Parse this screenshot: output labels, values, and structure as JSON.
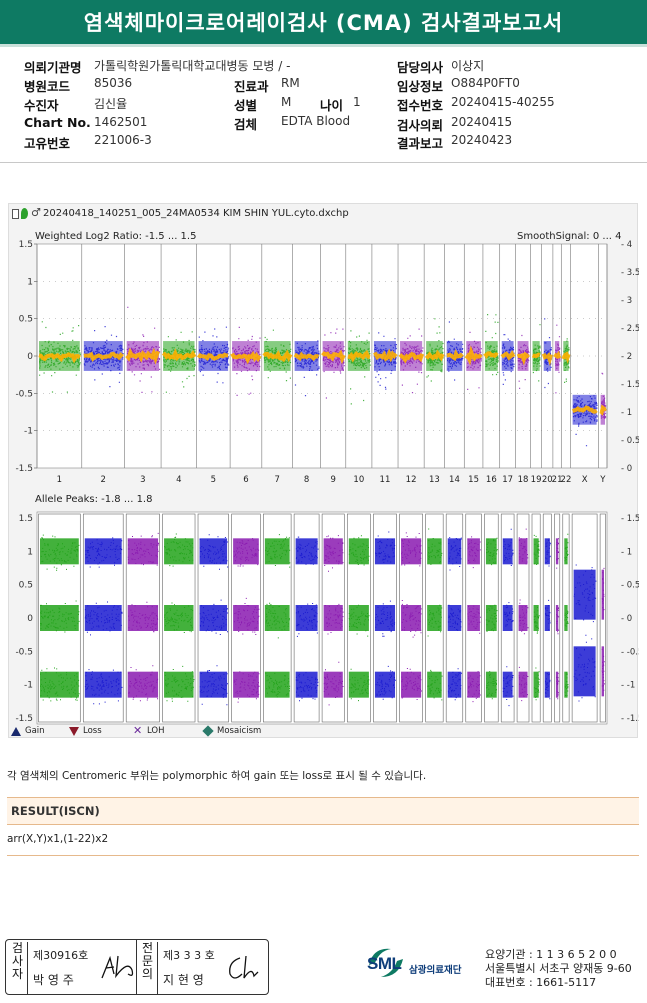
{
  "title": "염색체마이크로어레이검사 (CMA) 검사결과보고서",
  "patient": {
    "institution_label": "의뢰기관명",
    "institution": "가톨릭학원가톨릭대학교대병동 모병 / -",
    "hospital_code_label": "병원코드",
    "hospital_code": "85036",
    "department_label": "진료과",
    "department": "RM",
    "examinee_label": "수진자",
    "examinee": "김신율",
    "sex_label": "성별",
    "sex": "M",
    "age_label": "나이",
    "age": "1",
    "chart_label": "Chart No.",
    "chart": "1462501",
    "specimen_label": "검체",
    "specimen": "EDTA Blood",
    "unique_label": "고유번호",
    "unique": "221006-3",
    "doctor_label": "담당의사",
    "doctor": "이상지",
    "clinical_label": "임상정보",
    "clinical": "O884P0FT0",
    "receipt_label": "접수번호",
    "receipt": "20240415-40255",
    "request_label": "검사의뢰",
    "request": "20240415",
    "report_label": "결과보고",
    "report": "20240423"
  },
  "figure": {
    "file_name": "20240418_140251_005_24MA0534 KIM SHIN YUL.cyto.dxchp",
    "top_label_left": "Weighted Log2 Ratio: -1.5 ... 1.5",
    "top_label_right": "SmoothSignal: 0 ... 4",
    "bottom_label": "Allele Peaks: -1.8 ... 1.8",
    "chromosomes": [
      "1",
      "2",
      "3",
      "4",
      "5",
      "6",
      "7",
      "8",
      "9",
      "10",
      "11",
      "12",
      "13",
      "14",
      "15",
      "16",
      "17",
      "18",
      "19",
      "20",
      "21",
      "22",
      "X",
      "Y"
    ],
    "ratio_ticks_left": [
      "1.5",
      "1",
      "0.5",
      "0",
      "-0.5",
      "-1",
      "-1.5"
    ],
    "ratio_ticks_right": [
      "4",
      "3.5",
      "3",
      "2.5",
      "2",
      "1.5",
      "1",
      "0.5",
      "0"
    ],
    "allele_ticks": [
      "1.5",
      "1",
      "0.5",
      "0",
      "-0.5",
      "-1",
      "-1.5"
    ],
    "legend": [
      {
        "label": "Gain",
        "color": "#1a2a6e"
      },
      {
        "label": "Loss",
        "color": "#8b1a2a"
      },
      {
        "label": "LOH",
        "color": "#6a2a9a"
      },
      {
        "label": "Mosaicism",
        "color": "#2a7a6a"
      }
    ],
    "colors": {
      "green": "#22a31a",
      "blue": "#1a1ad0",
      "purple": "#8a1ab0",
      "smooth": "#ffb000"
    }
  },
  "note": "각 염색체의 Centromeric 부위는 polymorphic 하여 gain 또는 loss로 표시 될 수 있습니다.",
  "result": {
    "header": "RESULT(ISCN)",
    "value": "arr(X,Y)x1,(1-22)x2"
  },
  "signature": {
    "examiner_label": "검사자",
    "examiner_no": "제30916호",
    "examiner_name": "박 영 주",
    "confirmer_label": "전문의",
    "confirmer_no": "제3 3 3 호",
    "confirmer_name": "지 현 영"
  },
  "org": {
    "logo_text": "SML",
    "name": "삼광의료재단",
    "care_code": "요양기관 : 1 1 3 6 5 2 0 0",
    "address": "서울특별시 서초구 양재동 9-60",
    "phone": "대표번호 : 1661-5117"
  }
}
